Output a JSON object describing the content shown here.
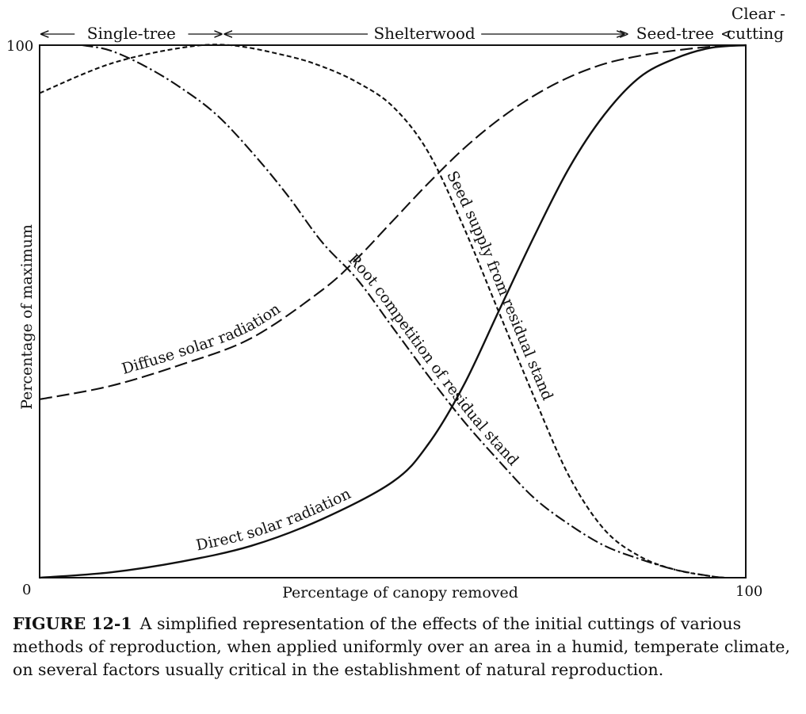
{
  "chart_data": {
    "type": "line",
    "xlabel": "Percentage of canopy removed",
    "ylabel": "Percentage of maximum",
    "xlim": [
      0,
      100
    ],
    "ylim": [
      0,
      100
    ],
    "x_ticks": [
      "0",
      "100"
    ],
    "y_ticks": [
      "0",
      "100"
    ],
    "grid": false,
    "methods": [
      {
        "label": "Single-tree",
        "from": 0,
        "to": 26
      },
      {
        "label": "Shelterwood",
        "from": 26,
        "to": 83
      },
      {
        "label": "Seed-tree",
        "from": 83,
        "to": 97
      },
      {
        "label": "Clear -",
        "label2": "cutting",
        "from": 97,
        "to": 100
      }
    ],
    "series": [
      {
        "name": "Direct solar radiation",
        "style": "solid",
        "x": [
          0,
          10,
          20,
          30,
          40,
          50,
          55,
          60,
          65,
          70,
          75,
          80,
          85,
          90,
          95,
          100
        ],
        "y": [
          0,
          1,
          3,
          6,
          11,
          18,
          25,
          36,
          50,
          64,
          77,
          87,
          94,
          97.5,
          99.5,
          100
        ]
      },
      {
        "name": "Diffuse solar radiation",
        "style": "long-dash",
        "x": [
          0,
          10,
          20,
          30,
          40,
          45,
          50,
          55,
          60,
          65,
          70,
          75,
          80,
          85,
          90,
          95,
          100
        ],
        "y": [
          33.5,
          36,
          40,
          45,
          54,
          60,
          67,
          74,
          80.5,
          86,
          90.5,
          94,
          96.5,
          98,
          99,
          99.7,
          100
        ]
      },
      {
        "name": "Seed supply from residual stand",
        "style": "short-dash",
        "x": [
          0,
          10,
          20,
          27,
          35,
          40,
          45,
          50,
          55,
          60,
          65,
          70,
          75,
          80,
          85,
          90,
          95,
          97
        ],
        "y": [
          91,
          96.5,
          99.5,
          100,
          98,
          96,
          93,
          88.5,
          80,
          66,
          50,
          34,
          19,
          9,
          4,
          1.5,
          0.3,
          0
        ]
      },
      {
        "name": "Root competition of residual stand",
        "style": "dash-dot",
        "x": [
          6,
          10,
          15,
          20,
          25,
          30,
          35,
          40,
          45,
          50,
          55,
          60,
          65,
          70,
          75,
          80,
          85,
          90,
          95,
          97
        ],
        "y": [
          100,
          99,
          96,
          92,
          87,
          80,
          72,
          63,
          56,
          47,
          38,
          29.5,
          22,
          15,
          10,
          6,
          3.5,
          1.5,
          0.3,
          0
        ]
      }
    ]
  },
  "caption": {
    "label": "FIGURE 12-1",
    "text": "A simplified representation of the effects of the initial cuttings of various methods of reproduction, when applied uniformly over an area in a humid, temperate climate, on several factors usually critical in the establishment of natural reproduction."
  }
}
